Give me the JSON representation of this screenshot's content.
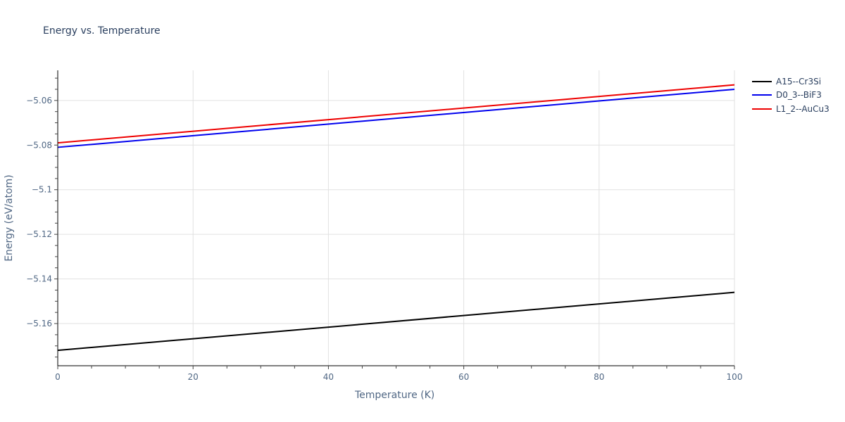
{
  "chart_data": {
    "type": "line",
    "title": "Energy vs. Temperature",
    "xlabel": "Temperature (K)",
    "ylabel": "Energy (eV/atom)",
    "xlim": [
      0,
      100
    ],
    "ylim": [
      -5.1789,
      -5.0465
    ],
    "x_ticks": [
      0,
      20,
      40,
      60,
      80,
      100
    ],
    "x_tick_labels": [
      "0",
      "20",
      "40",
      "60",
      "80",
      "100"
    ],
    "x_minor_step": 5,
    "y_ticks": [
      -5.16,
      -5.14,
      -5.12,
      -5.1,
      -5.08,
      -5.06
    ],
    "y_tick_labels": [
      "−5.16",
      "−5.14",
      "−5.12",
      "−5.1",
      "−5.08",
      "−5.06"
    ],
    "y_minor_step": 0.005,
    "grid": true,
    "legend_position": "right-top",
    "series": [
      {
        "name": "A15--Cr3Si",
        "color": "#000000",
        "x": [
          0,
          100
        ],
        "values": [
          -5.172,
          -5.146
        ]
      },
      {
        "name": "D0_3--BiF3",
        "color": "#0000ee",
        "x": [
          0,
          100
        ],
        "values": [
          -5.081,
          -5.055
        ]
      },
      {
        "name": "L1_2--AuCu3",
        "color": "#ee0000",
        "x": [
          0,
          100
        ],
        "values": [
          -5.079,
          -5.053
        ]
      }
    ]
  }
}
